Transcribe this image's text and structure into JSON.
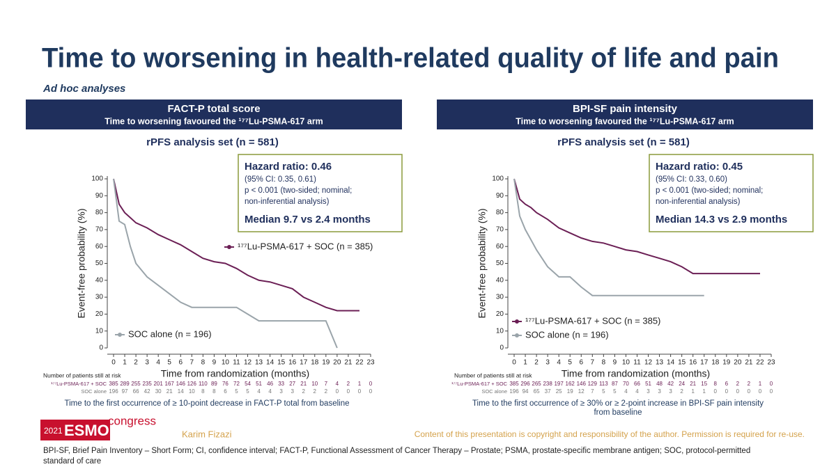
{
  "slide": {
    "title": "Time to worsening in health-related quality of life and pain",
    "subtitle": "Ad hoc analyses",
    "logo": {
      "year": "2021",
      "name": "ESMO",
      "word": "congress"
    },
    "presenter": "Karim Fizazi",
    "copyright": "Content of this presentation is copyright and responsibility of the author. Permission is required for re-use.",
    "abbreviations": [
      "BPI-SF, Brief Pain Inventory – Short Form; CI, confidence interval; FACT-P, Functional Assessment of Cancer Therapy – Prostate; PSMA, prostate-specific membrane antigen; SOC, protocol-permitted",
      "standard of care"
    ]
  },
  "chart_data": [
    {
      "type": "line",
      "title": "FACT-P total score",
      "subtitle": "Time to worsening favoured the ¹⁷⁷Lu-PSMA-617 arm",
      "analysis_set": "rPFS analysis set (n = 581)",
      "hazard": [
        "Hazard ratio: 0.46",
        "(95% CI: 0.35, 0.61)",
        "p < 0.001 (two-sided; nominal;",
        "non-inferential analysis)",
        "Median 9.7 vs 2.4 months"
      ],
      "xlabel": "Time from randomization (months)",
      "ylabel": "Event-free probability (%)",
      "x": [
        0,
        0.5,
        1,
        1.5,
        2,
        3,
        4,
        5,
        6,
        7,
        8,
        9,
        10,
        11,
        12,
        13,
        14,
        15,
        16,
        17,
        18,
        19,
        20,
        21,
        22
      ],
      "series": [
        {
          "name": "¹⁷⁷Lu-PSMA-617 + SOC (n = 385)",
          "color": "#6b1f55",
          "values": [
            100,
            85,
            80,
            77,
            74,
            71,
            67,
            64,
            61,
            57,
            53,
            51,
            50,
            47,
            43,
            40,
            39,
            37,
            35,
            30,
            27,
            24,
            22,
            22,
            22
          ]
        },
        {
          "name": "SOC alone (n = 196)",
          "color": "#9aa4aa",
          "values": [
            100,
            75,
            73,
            60,
            50,
            42,
            37,
            32,
            27,
            24,
            24,
            24,
            24,
            24,
            20,
            16,
            16,
            16,
            16,
            16,
            16,
            16,
            0,
            null,
            null
          ]
        }
      ],
      "xlim": [
        0,
        23
      ],
      "ylim": [
        0,
        100
      ],
      "xticks": [
        0,
        1,
        2,
        3,
        4,
        5,
        6,
        7,
        8,
        9,
        10,
        11,
        12,
        13,
        14,
        15,
        16,
        17,
        18,
        19,
        20,
        21,
        22,
        23
      ],
      "yticks": [
        0,
        10,
        20,
        30,
        40,
        50,
        60,
        70,
        80,
        90,
        100
      ],
      "risk_table": {
        "title": "Number of patients still at risk",
        "rows": [
          {
            "label": "¹⁷⁷Lu-PSMA-617 + SOC",
            "values": [
              385,
              289,
              255,
              235,
              201,
              167,
              146,
              126,
              110,
              89,
              76,
              72,
              54,
              51,
              46,
              33,
              27,
              21,
              10,
              7,
              4,
              2,
              1,
              0
            ]
          },
          {
            "label": "SOC alone",
            "values": [
              196,
              97,
              66,
              42,
              30,
              21,
              14,
              10,
              8,
              8,
              6,
              5,
              5,
              4,
              4,
              3,
              3,
              2,
              2,
              2,
              0,
              0,
              0,
              0
            ]
          }
        ]
      },
      "footnote": [
        "Time to the first occurrence of ≥ 10-point decrease in FACT-P total from baseline"
      ]
    },
    {
      "type": "line",
      "title": "BPI-SF pain intensity",
      "subtitle": "Time to worsening favoured the ¹⁷⁷Lu-PSMA-617 arm",
      "analysis_set": "rPFS analysis set (n = 581)",
      "hazard": [
        "Hazard ratio: 0.45",
        "(95% CI: 0.33, 0.60)",
        "p < 0.001 (two-sided; nominal;",
        "non-inferential analysis)",
        "Median 14.3 vs 2.9 months"
      ],
      "xlabel": "Time from randomization (months)",
      "ylabel": "Event-free probability (%)",
      "x": [
        0,
        0.5,
        1,
        1.5,
        2,
        3,
        4,
        5,
        6,
        7,
        8,
        9,
        10,
        11,
        12,
        13,
        14,
        15,
        16,
        17,
        18,
        19,
        20,
        21,
        22
      ],
      "series": [
        {
          "name": "¹⁷⁷Lu-PSMA-617 + SOC (n = 385)",
          "color": "#6b1f55",
          "values": [
            100,
            88,
            85,
            83,
            80,
            76,
            71,
            68,
            65,
            63,
            62,
            60,
            58,
            57,
            55,
            53,
            51,
            48,
            44,
            44,
            44,
            44,
            44,
            44,
            44
          ]
        },
        {
          "name": "SOC alone (n = 196)",
          "color": "#9aa4aa",
          "values": [
            100,
            78,
            70,
            64,
            58,
            48,
            42,
            42,
            36,
            31,
            31,
            31,
            31,
            31,
            31,
            31,
            31,
            31,
            31,
            31,
            null,
            null,
            null,
            null,
            null
          ]
        }
      ],
      "xlim": [
        0,
        23
      ],
      "ylim": [
        0,
        100
      ],
      "xticks": [
        0,
        1,
        2,
        3,
        4,
        5,
        6,
        7,
        8,
        9,
        10,
        11,
        12,
        13,
        14,
        15,
        16,
        17,
        18,
        19,
        20,
        21,
        22,
        23
      ],
      "yticks": [
        0,
        10,
        20,
        30,
        40,
        50,
        60,
        70,
        80,
        90,
        100
      ],
      "risk_table": {
        "title": "Number of patients still at risk",
        "rows": [
          {
            "label": "¹⁷⁷Lu-PSMA-617 + SOC",
            "values": [
              385,
              296,
              265,
              238,
              197,
              162,
              146,
              129,
              113,
              87,
              70,
              66,
              51,
              48,
              42,
              24,
              21,
              15,
              8,
              6,
              2,
              2,
              1,
              0
            ]
          },
          {
            "label": "SOC alone",
            "values": [
              196,
              94,
              65,
              37,
              25,
              19,
              12,
              7,
              5,
              5,
              4,
              4,
              3,
              3,
              3,
              2,
              1,
              1,
              0,
              0,
              0,
              0,
              0,
              0
            ]
          }
        ]
      },
      "footnote": [
        "Time to the first occurrence of ≥ 30% or ≥ 2-point increase in BPI-SF pain intensity",
        "from baseline"
      ]
    }
  ]
}
